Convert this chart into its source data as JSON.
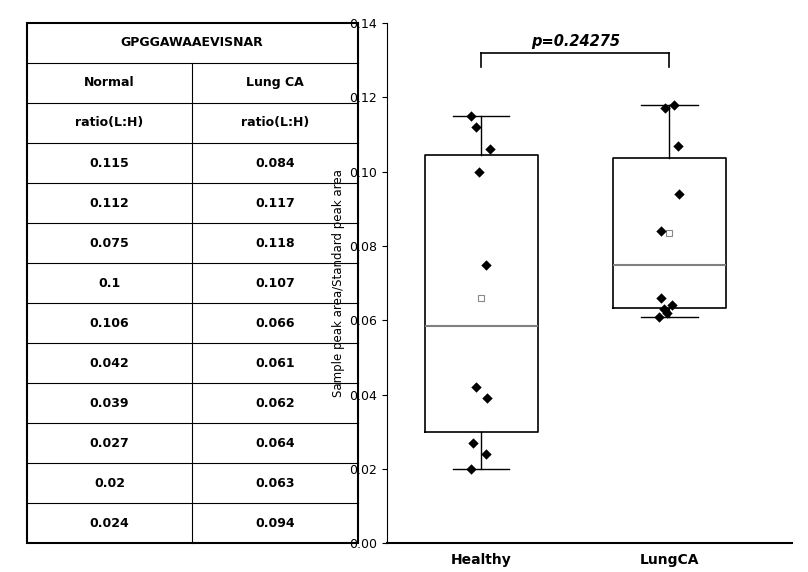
{
  "title": "GPGGAWAAEVISNAR",
  "p_value": "p=0.24275",
  "ylabel": "Sample peak area/Standard peak area",
  "xlabel_healthy": "Healthy",
  "xlabel_lungca": "LungCA",
  "col1_header": "Normal",
  "col2_header": "Lung CA",
  "col1_subheader": "ratio(L:H)",
  "col2_subheader": "ratio(L:H)",
  "normal_values": [
    0.115,
    0.112,
    0.075,
    0.1,
    0.106,
    0.042,
    0.039,
    0.027,
    0.02,
    0.024
  ],
  "lungca_values": [
    0.084,
    0.117,
    0.118,
    0.107,
    0.066,
    0.061,
    0.062,
    0.064,
    0.063,
    0.094
  ],
  "ylim": [
    0.0,
    0.14
  ],
  "yticks": [
    0.0,
    0.02,
    0.04,
    0.06,
    0.08,
    0.1,
    0.12,
    0.14
  ],
  "healthy_jitter": [
    -0.22,
    -0.1,
    0.1,
    -0.05,
    0.18,
    -0.12,
    0.12,
    -0.18,
    -0.22,
    0.1
  ],
  "lungca_jitter": [
    -0.18,
    -0.1,
    0.1,
    0.18,
    -0.18,
    -0.22,
    -0.05,
    0.05,
    -0.12,
    0.2
  ],
  "box_color": "#000000",
  "whisker_color": "#000000",
  "median_color": "#808080",
  "flier_color": "#000000",
  "mean_color": "#888888",
  "background_color": "#ffffff"
}
